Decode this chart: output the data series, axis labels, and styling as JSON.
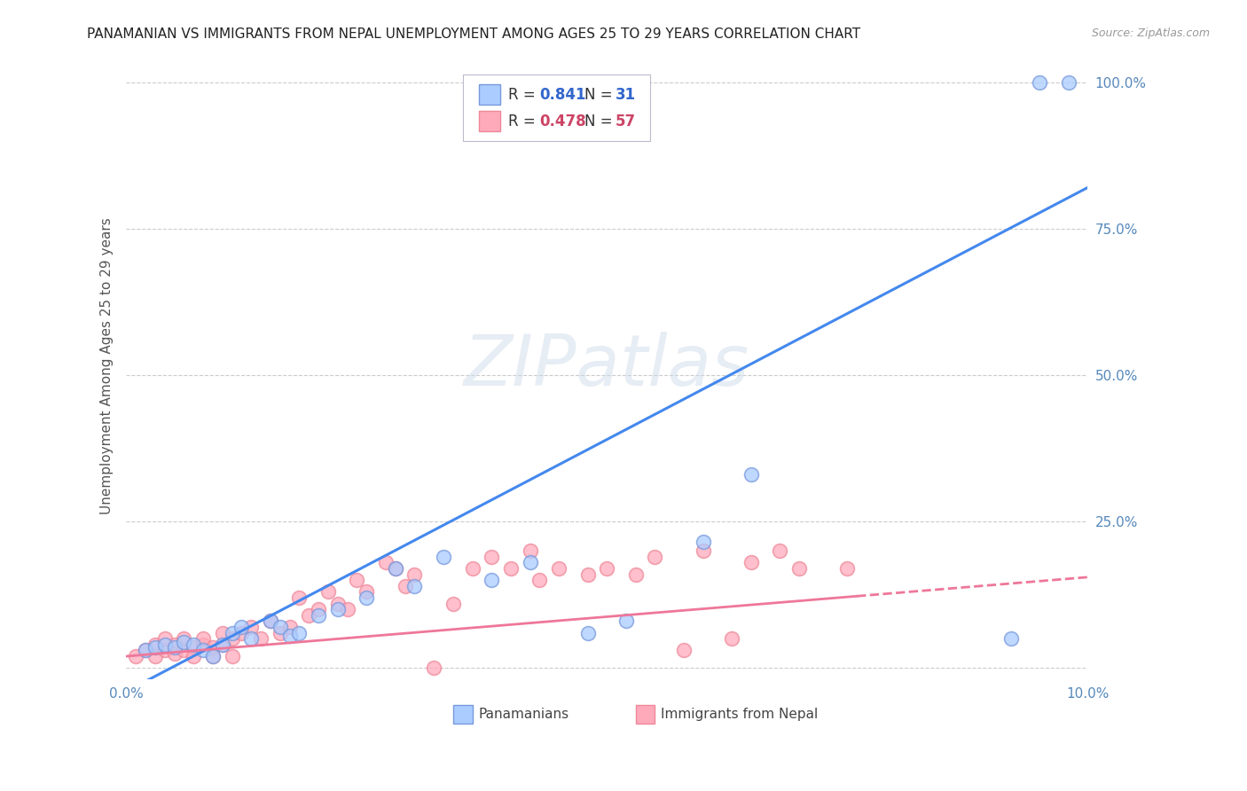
{
  "title": "PANAMANIAN VS IMMIGRANTS FROM NEPAL UNEMPLOYMENT AMONG AGES 25 TO 29 YEARS CORRELATION CHART",
  "source": "Source: ZipAtlas.com",
  "ylabel": "Unemployment Among Ages 25 to 29 years",
  "xlim": [
    0.0,
    0.1
  ],
  "ylim": [
    -0.02,
    1.05
  ],
  "y_ticks": [
    0.0,
    0.25,
    0.5,
    0.75,
    1.0
  ],
  "y_tick_labels": [
    "",
    "25.0%",
    "50.0%",
    "75.0%",
    "100.0%"
  ],
  "grid_color": "#cccccc",
  "background_color": "#ffffff",
  "blue_face": "#aaccff",
  "blue_edge": "#7799dd",
  "pink_face": "#ffaabb",
  "pink_edge": "#ee8899",
  "blue_line": "#4488ee",
  "pink_line": "#ee7799",
  "legend_R_blue": "0.841",
  "legend_N_blue": "31",
  "legend_R_pink": "0.478",
  "legend_N_pink": "57",
  "panamanians_x": [
    0.002,
    0.003,
    0.004,
    0.005,
    0.006,
    0.007,
    0.008,
    0.009,
    0.01,
    0.011,
    0.012,
    0.013,
    0.015,
    0.016,
    0.017,
    0.018,
    0.02,
    0.022,
    0.025,
    0.028,
    0.03,
    0.033,
    0.038,
    0.042,
    0.048,
    0.052,
    0.06,
    0.065,
    0.092,
    0.095,
    0.098
  ],
  "panamanians_y": [
    0.03,
    0.035,
    0.04,
    0.035,
    0.045,
    0.04,
    0.03,
    0.02,
    0.04,
    0.06,
    0.07,
    0.05,
    0.08,
    0.07,
    0.055,
    0.06,
    0.09,
    0.1,
    0.12,
    0.17,
    0.14,
    0.19,
    0.15,
    0.18,
    0.06,
    0.08,
    0.215,
    0.33,
    0.05,
    1.0,
    1.0
  ],
  "nepal_x": [
    0.001,
    0.002,
    0.003,
    0.003,
    0.004,
    0.004,
    0.005,
    0.005,
    0.006,
    0.006,
    0.007,
    0.007,
    0.008,
    0.008,
    0.009,
    0.009,
    0.01,
    0.01,
    0.011,
    0.011,
    0.012,
    0.013,
    0.014,
    0.015,
    0.016,
    0.017,
    0.018,
    0.019,
    0.02,
    0.021,
    0.022,
    0.023,
    0.024,
    0.025,
    0.027,
    0.028,
    0.029,
    0.03,
    0.032,
    0.034,
    0.036,
    0.038,
    0.04,
    0.042,
    0.043,
    0.045,
    0.048,
    0.05,
    0.053,
    0.055,
    0.058,
    0.06,
    0.063,
    0.065,
    0.068,
    0.07,
    0.075
  ],
  "nepal_y": [
    0.02,
    0.03,
    0.02,
    0.04,
    0.03,
    0.05,
    0.025,
    0.04,
    0.03,
    0.05,
    0.035,
    0.02,
    0.04,
    0.05,
    0.035,
    0.02,
    0.04,
    0.06,
    0.05,
    0.02,
    0.06,
    0.07,
    0.05,
    0.08,
    0.06,
    0.07,
    0.12,
    0.09,
    0.1,
    0.13,
    0.11,
    0.1,
    0.15,
    0.13,
    0.18,
    0.17,
    0.14,
    0.16,
    0.0,
    0.11,
    0.17,
    0.19,
    0.17,
    0.2,
    0.15,
    0.17,
    0.16,
    0.17,
    0.16,
    0.19,
    0.03,
    0.2,
    0.05,
    0.18,
    0.2,
    0.17,
    0.17
  ],
  "blue_line_x0": 0.0,
  "blue_line_y0": -0.04,
  "blue_line_x1": 0.1,
  "blue_line_y1": 0.82,
  "pink_line_x0": 0.0,
  "pink_line_y0": 0.02,
  "pink_line_x1": 0.1,
  "pink_line_y1": 0.155
}
